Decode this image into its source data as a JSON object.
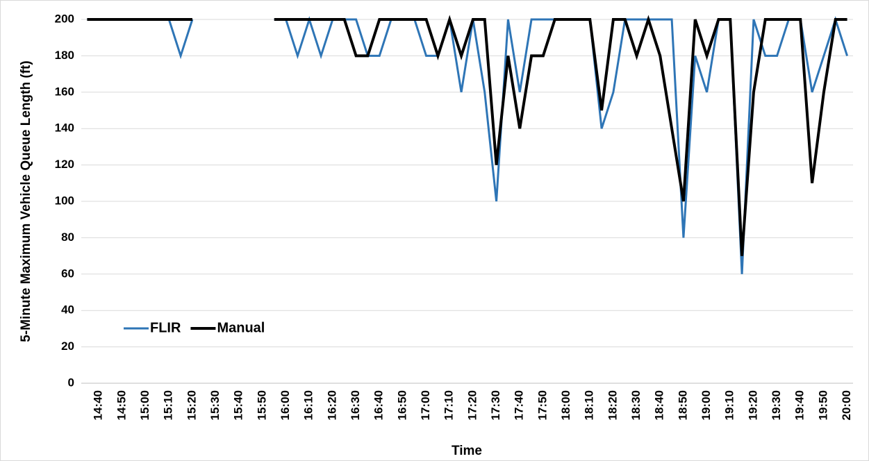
{
  "chart_data": {
    "type": "line",
    "x_label": "Time",
    "y_label": "5-Minute Maximum Vehicle Queue Length (ft)",
    "categories": [
      null,
      "14:40",
      null,
      "14:50",
      null,
      "15:00",
      null,
      "15:10",
      null,
      "15:20",
      null,
      "15:30",
      null,
      "15:40",
      null,
      "15:50",
      null,
      "16:00",
      null,
      "16:10",
      null,
      "16:20",
      null,
      "16:30",
      null,
      "16:40",
      null,
      "16:50",
      null,
      "17:00",
      null,
      "17:10",
      null,
      "17:20",
      null,
      "17:30",
      null,
      "17:40",
      null,
      "17:50",
      null,
      "18:00",
      null,
      "18:10",
      null,
      "18:20",
      null,
      "18:30",
      null,
      "18:40",
      null,
      "18:50",
      null,
      "19:00",
      null,
      "19:10",
      null,
      "19:20",
      null,
      "19:30",
      null,
      "19:40",
      null,
      "19:50",
      null,
      "20:00"
    ],
    "series": [
      {
        "name": "FLIR",
        "color": "#2e75b6",
        "width": 3,
        "values": [
          200,
          200,
          200,
          200,
          200,
          200,
          200,
          200,
          180,
          200,
          null,
          null,
          null,
          null,
          null,
          null,
          200,
          200,
          180,
          200,
          180,
          200,
          200,
          200,
          180,
          180,
          200,
          200,
          200,
          180,
          180,
          200,
          160,
          200,
          160,
          100,
          200,
          160,
          200,
          200,
          200,
          200,
          200,
          200,
          140,
          160,
          200,
          200,
          200,
          200,
          200,
          80,
          180,
          160,
          200,
          200,
          60,
          200,
          180,
          180,
          200,
          200,
          160,
          180,
          200,
          180
        ]
      },
      {
        "name": "Manual",
        "color": "#000000",
        "width": 4,
        "values": [
          200,
          200,
          200,
          200,
          200,
          200,
          200,
          200,
          200,
          200,
          null,
          null,
          null,
          null,
          null,
          null,
          200,
          200,
          200,
          200,
          200,
          200,
          200,
          180,
          180,
          200,
          200,
          200,
          200,
          200,
          180,
          200,
          180,
          200,
          200,
          120,
          180,
          140,
          180,
          180,
          200,
          200,
          200,
          200,
          150,
          200,
          200,
          180,
          200,
          180,
          140,
          100,
          200,
          180,
          200,
          200,
          70,
          160,
          200,
          200,
          200,
          200,
          110,
          160,
          200,
          200
        ]
      }
    ],
    "ylim": [
      0,
      200
    ],
    "yticks": [
      0,
      20,
      40,
      60,
      80,
      100,
      120,
      140,
      160,
      180,
      200
    ],
    "grid": true,
    "legend": "lower left"
  }
}
